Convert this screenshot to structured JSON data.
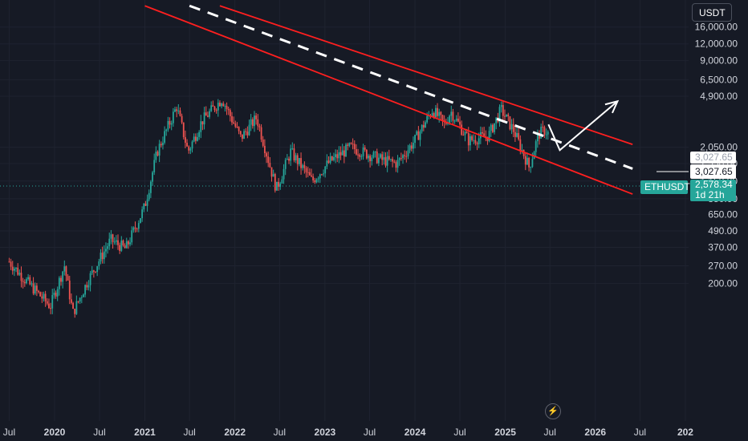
{
  "toolbar": {
    "currency_label": "USDT"
  },
  "price_tags": {
    "target_ghost": "3,027.65",
    "target": "3,027.65",
    "symbol": "ETHUSDT",
    "current_price": "2,578.34",
    "countdown": "1d 21h"
  },
  "colors": {
    "background": "#161a25",
    "up_candle": "#26a69a",
    "down_candle": "#ef5350",
    "channel": "#ff1f1f",
    "midline": "#ffffff",
    "price_tag": "#26a69a"
  },
  "icons": {
    "bolt": "lightning-bolt-icon"
  },
  "chart_data": {
    "type": "candlestick",
    "symbol": "ETHUSDT",
    "interval": "weekly",
    "y_scale": "log",
    "ylim": [
      180,
      18000
    ],
    "x_range": [
      "2019-07-01",
      "2026-12-31"
    ],
    "y_ticks": [
      "16,000.00",
      "12,000.00",
      "9,000.00",
      "6,500.00",
      "4,900.00",
      "3,027.65",
      "2,050.00",
      "1,550.00",
      "1,150.00",
      "850.00",
      "650.00",
      "490.00",
      "370.00",
      "270.00",
      "200.00"
    ],
    "x_ticks": [
      {
        "label": "Jul",
        "major": false
      },
      {
        "label": "2020",
        "major": true
      },
      {
        "label": "Jul",
        "major": false
      },
      {
        "label": "2021",
        "major": true
      },
      {
        "label": "Jul",
        "major": false
      },
      {
        "label": "2022",
        "major": true
      },
      {
        "label": "Jul",
        "major": false
      },
      {
        "label": "2023",
        "major": true
      },
      {
        "label": "Jul",
        "major": false
      },
      {
        "label": "2024",
        "major": true
      },
      {
        "label": "Jul",
        "major": false
      },
      {
        "label": "2025",
        "major": true
      },
      {
        "label": "Jul",
        "major": false
      },
      {
        "label": "2026",
        "major": true
      },
      {
        "label": "Jul",
        "major": false
      },
      {
        "label": "202",
        "major": true
      }
    ],
    "price_path": [
      {
        "date": "2019-07-01",
        "close": 290
      },
      {
        "date": "2019-09-01",
        "close": 215
      },
      {
        "date": "2019-12-15",
        "close": 135
      },
      {
        "date": "2020-02-10",
        "close": 270
      },
      {
        "date": "2020-03-15",
        "close": 120
      },
      {
        "date": "2020-05-15",
        "close": 210
      },
      {
        "date": "2020-08-15",
        "close": 420
      },
      {
        "date": "2020-10-15",
        "close": 360
      },
      {
        "date": "2020-12-31",
        "close": 740
      },
      {
        "date": "2021-02-20",
        "close": 1900
      },
      {
        "date": "2021-05-10",
        "close": 4100
      },
      {
        "date": "2021-06-25",
        "close": 1900
      },
      {
        "date": "2021-08-20",
        "close": 3200
      },
      {
        "date": "2021-11-10",
        "close": 4700
      },
      {
        "date": "2022-01-25",
        "close": 2400
      },
      {
        "date": "2022-03-30",
        "close": 3400
      },
      {
        "date": "2022-06-18",
        "close": 1000
      },
      {
        "date": "2022-08-15",
        "close": 1900
      },
      {
        "date": "2022-11-10",
        "close": 1150
      },
      {
        "date": "2023-01-20",
        "close": 1600
      },
      {
        "date": "2023-04-15",
        "close": 2050
      },
      {
        "date": "2023-08-20",
        "close": 1650
      },
      {
        "date": "2023-10-20",
        "close": 1550
      },
      {
        "date": "2023-12-31",
        "close": 2300
      },
      {
        "date": "2024-03-12",
        "close": 3900
      },
      {
        "date": "2024-05-01",
        "close": 3000
      },
      {
        "date": "2024-05-25",
        "close": 3800
      },
      {
        "date": "2024-08-05",
        "close": 2300
      },
      {
        "date": "2024-10-25",
        "close": 2500
      },
      {
        "date": "2024-12-15",
        "close": 3900
      },
      {
        "date": "2025-02-05",
        "close": 2700
      },
      {
        "date": "2025-04-08",
        "close": 1450
      },
      {
        "date": "2025-05-15",
        "close": 2550
      },
      {
        "date": "2025-06-10",
        "close": 2750
      },
      {
        "date": "2025-06-25",
        "close": 2578.34
      }
    ],
    "drawings": {
      "channel_upper": [
        [
          "2021-11-01",
          23000
        ],
        [
          "2026-06-01",
          2150
        ]
      ],
      "channel_lower": [
        [
          "2021-01-01",
          23000
        ],
        [
          "2026-06-01",
          920
        ]
      ],
      "midline": [
        [
          "2021-07-01",
          23000
        ],
        [
          "2026-06-01",
          1420
        ]
      ],
      "projection_arrow": [
        [
          "2025-06-25",
          3027.65
        ],
        [
          "2025-08-10",
          1950
        ],
        [
          "2026-04-01",
          4500
        ]
      ]
    }
  }
}
